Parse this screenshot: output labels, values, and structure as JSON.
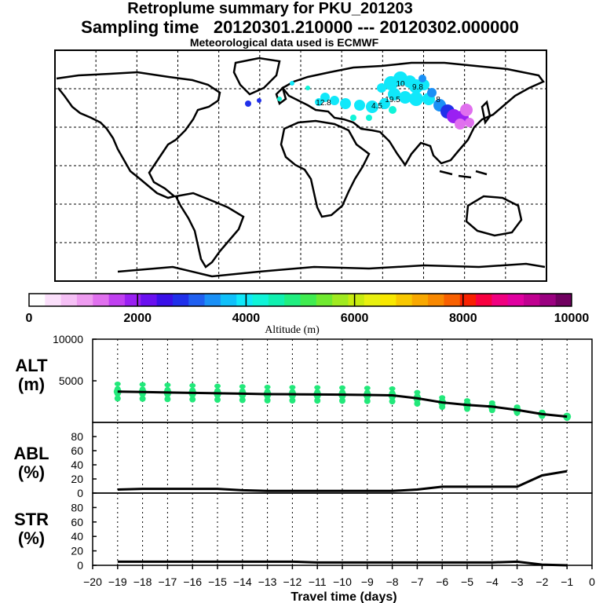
{
  "header": {
    "title": "Retroplume summary for PKU_201203",
    "sampling": "Sampling time   20120301.210000 --- 20120302.000000",
    "met": "Meteorological data used is ECMWF"
  },
  "colorbar": {
    "label": "Altitude (m)",
    "ticks": [
      "0",
      "2000",
      "4000",
      "6000",
      "8000",
      "10000"
    ],
    "colors": [
      "#ffffff",
      "#fbe0fb",
      "#f5c0f5",
      "#ee9cf0",
      "#e070ee",
      "#c040f0",
      "#9a20f2",
      "#6a10f0",
      "#3a10e8",
      "#2030ea",
      "#2060f0",
      "#1a90f6",
      "#10c0fa",
      "#10e8fa",
      "#10f4d8",
      "#10f0b0",
      "#20ee80",
      "#40ec50",
      "#70ea30",
      "#a0ea20",
      "#c8ec10",
      "#e8f010",
      "#f8e800",
      "#f8c800",
      "#f8a800",
      "#f88800",
      "#f86000",
      "#f82000",
      "#f80040",
      "#f00080",
      "#e000a0",
      "#c00090",
      "#9a0080",
      "#700060"
    ]
  },
  "chart_data": [
    {
      "type": "scatter",
      "name": "ALT",
      "ylabel": "ALT\n(m)",
      "xlim": [
        -20,
        0
      ],
      "ylim": [
        0,
        10000
      ],
      "yticks": [
        "10000",
        "5000"
      ],
      "line": {
        "x": [
          -19,
          -18,
          -17,
          -16,
          -15,
          -14,
          -13,
          -12,
          -11,
          -10,
          -9,
          -8,
          -7,
          -6,
          -5,
          -4,
          -3,
          -2,
          -1
        ],
        "y": [
          3700,
          3650,
          3600,
          3550,
          3500,
          3450,
          3400,
          3380,
          3360,
          3340,
          3300,
          3250,
          2900,
          2400,
          2100,
          1900,
          1500,
          1000,
          700
        ]
      },
      "points_color": "#22e87a"
    },
    {
      "type": "line",
      "name": "ABL",
      "ylabel": "ABL\n(%)",
      "xlim": [
        -20,
        0
      ],
      "ylim": [
        0,
        100
      ],
      "yticks": [
        "80",
        "60",
        "40",
        "20",
        "0"
      ],
      "line": {
        "x": [
          -19,
          -18,
          -17,
          -16,
          -15,
          -14,
          -13,
          -12,
          -11,
          -10,
          -9,
          -8,
          -7,
          -6,
          -5,
          -4,
          -3,
          -2,
          -1
        ],
        "y": [
          5,
          6,
          6,
          6,
          6,
          4,
          3,
          3,
          3,
          3,
          3,
          3,
          5,
          9,
          9,
          9,
          9,
          25,
          31
        ]
      }
    },
    {
      "type": "line",
      "name": "STR",
      "ylabel": "STR\n(%)",
      "xlim": [
        -20,
        0
      ],
      "xlabel": "Travel time (days)",
      "ylim": [
        0,
        100
      ],
      "yticks": [
        "80",
        "60",
        "40",
        "20",
        "0"
      ],
      "xticks": [
        "−20",
        "−19",
        "−18",
        "−17",
        "−16",
        "−15",
        "−14",
        "−13",
        "−12",
        "−11",
        "−10",
        "−9",
        "−8",
        "−7",
        "−6",
        "−5",
        "−4",
        "−3",
        "−2",
        "−1",
        "0"
      ],
      "line": {
        "x": [
          -19,
          -18,
          -17,
          -16,
          -15,
          -14,
          -13,
          -12,
          -11,
          -10,
          -9,
          -8,
          -7,
          -6,
          -5,
          -4,
          -3,
          -2,
          -1
        ],
        "y": [
          5,
          5,
          5,
          5,
          5,
          5,
          5,
          5,
          4,
          4,
          4,
          4,
          4,
          4,
          4,
          4,
          5,
          1,
          0
        ]
      }
    }
  ],
  "map": {
    "labels": [
      "10",
      "9.8",
      "12.8",
      "19.5",
      "4.5",
      "8"
    ],
    "plume_colors": [
      "#10e8fa",
      "#1a90f6",
      "#2030ea",
      "#9a20f2",
      "#e070ee",
      "#10f4d8"
    ]
  }
}
